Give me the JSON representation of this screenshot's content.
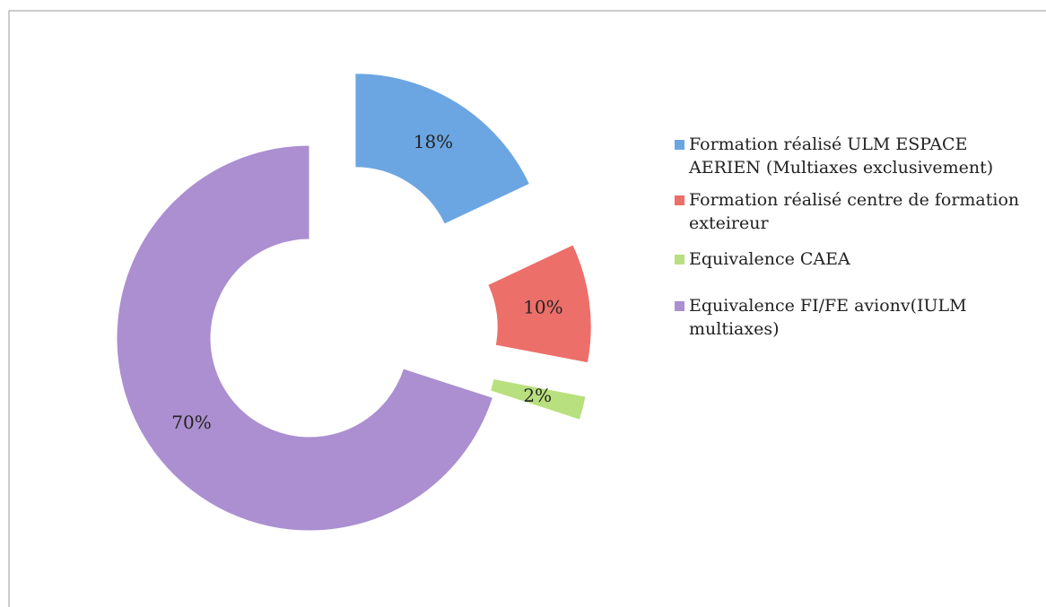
{
  "chart_data": {
    "type": "donut",
    "categories": [
      "Formation réalisé ULM ESPACE AERIEN (Multiaxes exclusivement)",
      "Formation réalisé centre de formation exteireur",
      "Equivalence CAEA",
      "Equivalence FI/FE avionv(IULM multiaxes)"
    ],
    "values": [
      18,
      10,
      2,
      70
    ],
    "value_labels": [
      "18%",
      "10%",
      "2%",
      "70%"
    ],
    "colors": [
      "#6ba6e2",
      "#ec6f69",
      "#b8e07e",
      "#ab8fd0"
    ],
    "legend": "right"
  }
}
